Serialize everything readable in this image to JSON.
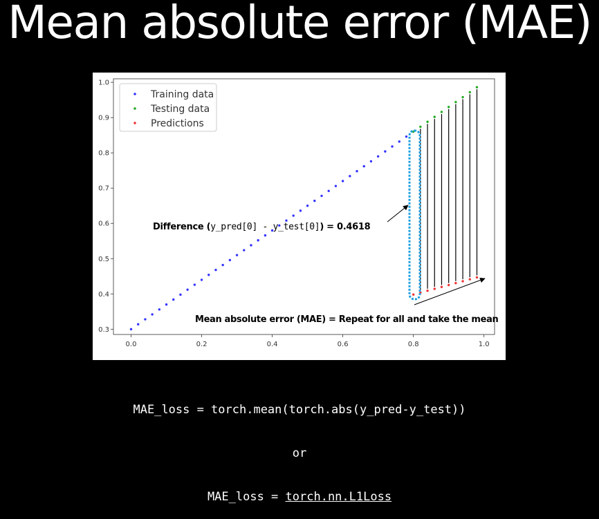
{
  "title": "Mean absolute error (MAE)",
  "annotations": {
    "difference_prefix": "Difference (",
    "difference_code": "y_pred[0] - y_test[0]",
    "difference_suffix": ") = 0.4618",
    "mae_note": "Mean absolute error (MAE) = Repeat for all and take the mean"
  },
  "code": {
    "line1": "MAE_loss = torch.mean(torch.abs(y_pred-y_test))",
    "line2": "or",
    "line3_prefix": "MAE_loss = ",
    "line3_link": "torch.nn.L1Loss"
  },
  "colors": {
    "training": "#3333ff",
    "testing": "#22aa22",
    "predictions": "#ee3333",
    "highlight": "#1e9fe0"
  },
  "chart_data": {
    "type": "scatter",
    "xlim": [
      -0.05,
      1.03
    ],
    "ylim": [
      0.285,
      1.01
    ],
    "xticks": [
      "0.0",
      "0.2",
      "0.4",
      "0.6",
      "0.8",
      "1.0"
    ],
    "yticks": [
      "0.3",
      "0.4",
      "0.5",
      "0.6",
      "0.7",
      "0.8",
      "0.9",
      "1.0"
    ],
    "legend_position": "top-left",
    "series": [
      {
        "name": "Training data",
        "x": [
          0.0,
          0.02,
          0.04,
          0.06,
          0.08,
          0.1,
          0.12,
          0.14,
          0.16,
          0.18,
          0.2,
          0.22,
          0.24,
          0.26,
          0.28,
          0.3,
          0.32,
          0.34,
          0.36,
          0.38,
          0.4,
          0.42,
          0.44,
          0.46,
          0.48,
          0.5,
          0.52,
          0.54,
          0.56,
          0.58,
          0.6,
          0.62,
          0.64,
          0.66,
          0.68,
          0.7,
          0.72,
          0.74,
          0.76,
          0.78
        ],
        "y": [
          0.3,
          0.314,
          0.328,
          0.342,
          0.356,
          0.37,
          0.384,
          0.398,
          0.412,
          0.426,
          0.44,
          0.454,
          0.468,
          0.482,
          0.496,
          0.51,
          0.524,
          0.538,
          0.552,
          0.566,
          0.58,
          0.594,
          0.608,
          0.622,
          0.636,
          0.65,
          0.664,
          0.678,
          0.692,
          0.706,
          0.72,
          0.734,
          0.748,
          0.762,
          0.776,
          0.79,
          0.804,
          0.818,
          0.832,
          0.846
        ]
      },
      {
        "name": "Testing data",
        "x": [
          0.8,
          0.82,
          0.84,
          0.86,
          0.88,
          0.9,
          0.92,
          0.94,
          0.96,
          0.98
        ],
        "y": [
          0.86,
          0.874,
          0.888,
          0.902,
          0.916,
          0.93,
          0.944,
          0.958,
          0.972,
          0.986
        ]
      },
      {
        "name": "Predictions",
        "x": [
          0.8,
          0.82,
          0.84,
          0.86,
          0.88,
          0.9,
          0.92,
          0.94,
          0.96,
          0.98
        ],
        "y": [
          0.3982,
          0.4036,
          0.409,
          0.4144,
          0.4198,
          0.4252,
          0.4306,
          0.436,
          0.4414,
          0.4468
        ]
      }
    ]
  }
}
